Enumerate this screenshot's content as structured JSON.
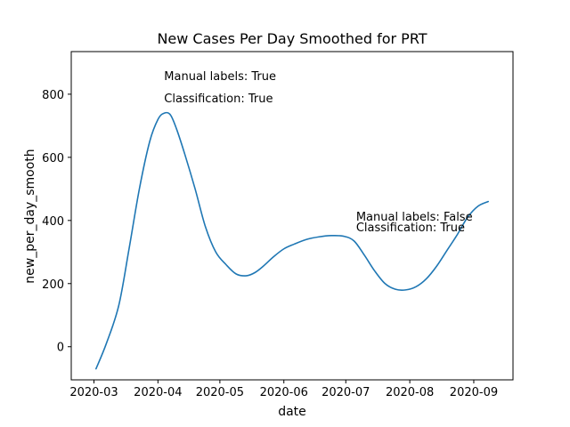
{
  "chart_data": {
    "type": "line",
    "title": "New Cases Per Day Smoothed for PRT",
    "xlabel": "date",
    "ylabel": "new_per_day_smooth",
    "x_ticks": [
      "2020-03",
      "2020-04",
      "2020-05",
      "2020-06",
      "2020-07",
      "2020-08",
      "2020-09"
    ],
    "y_ticks": [
      0,
      200,
      400,
      600,
      800
    ],
    "xlim": [
      "2020-02-19",
      "2020-09-20"
    ],
    "ylim": [
      -105,
      935
    ],
    "grid": false,
    "series": [
      {
        "color": "#1f77b4",
        "x": [
          "2020-03-02",
          "2020-03-07",
          "2020-03-13",
          "2020-03-18",
          "2020-03-23",
          "2020-03-28",
          "2020-04-01",
          "2020-04-04",
          "2020-04-07",
          "2020-04-10",
          "2020-04-14",
          "2020-04-19",
          "2020-04-24",
          "2020-04-29",
          "2020-05-04",
          "2020-05-09",
          "2020-05-14",
          "2020-05-18",
          "2020-05-22",
          "2020-05-27",
          "2020-06-01",
          "2020-06-06",
          "2020-06-12",
          "2020-06-18",
          "2020-06-24",
          "2020-06-30",
          "2020-07-05",
          "2020-07-10",
          "2020-07-15",
          "2020-07-20",
          "2020-07-25",
          "2020-07-30",
          "2020-08-04",
          "2020-08-09",
          "2020-08-14",
          "2020-08-19",
          "2020-08-24",
          "2020-08-29",
          "2020-09-03",
          "2020-09-08"
        ],
        "y": [
          -70,
          10,
          130,
          310,
          500,
          650,
          720,
          740,
          735,
          690,
          610,
          500,
          380,
          300,
          260,
          230,
          225,
          235,
          255,
          285,
          310,
          325,
          340,
          348,
          352,
          350,
          335,
          290,
          240,
          200,
          182,
          180,
          190,
          215,
          255,
          305,
          355,
          410,
          445,
          460
        ]
      }
    ],
    "annotations": [
      {
        "lines": [
          "Manual labels: True",
          "Classification: True"
        ],
        "x": "2020-04-04",
        "y": 845,
        "y2": 775
      },
      {
        "lines": [
          "Manual labels: False",
          "Classification: True"
        ],
        "x": "2020-07-06",
        "y": 400,
        "y2": 365
      }
    ]
  }
}
